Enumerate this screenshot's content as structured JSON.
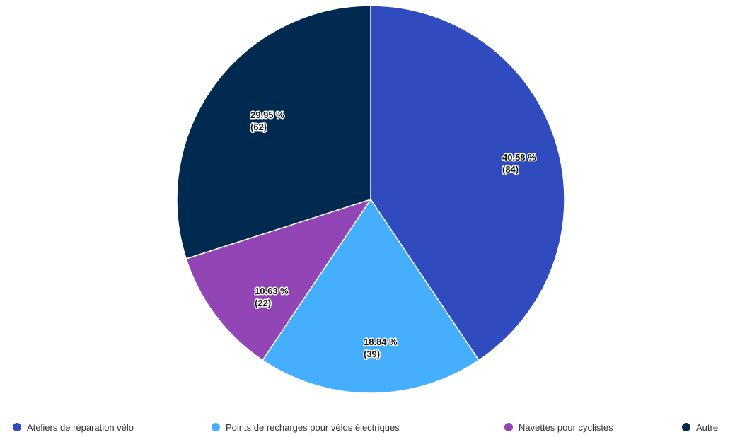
{
  "chart_data": {
    "type": "pie",
    "title": "",
    "legend_position": "bottom",
    "series": [
      {
        "name": "",
        "slices": [
          {
            "label": "Ateliers de réparation vélo",
            "value": 84,
            "percent_label": "40.58 %",
            "count_label": "(84)",
            "color": "#2f4bbd"
          },
          {
            "label": "Points de recharges pour vélos électriques",
            "value": 39,
            "percent_label": "18.84 %",
            "count_label": "(39)",
            "color": "#45aeff"
          },
          {
            "label": "Navettes pour cyclistes",
            "value": 22,
            "percent_label": "10.63 %",
            "count_label": "(22)",
            "color": "#9246b5"
          },
          {
            "label": "Autre",
            "value": 62,
            "percent_label": "29.95 %",
            "count_label": "(62)",
            "color": "#002a50"
          }
        ]
      }
    ]
  }
}
